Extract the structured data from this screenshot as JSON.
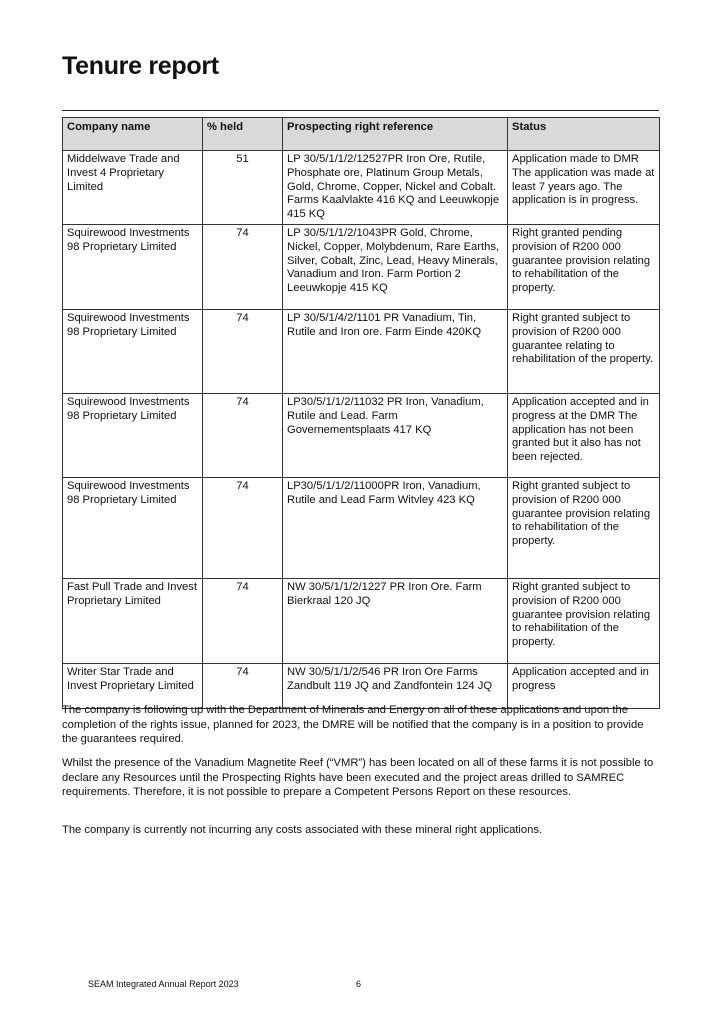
{
  "title": "Tenure report",
  "table": {
    "headers": [
      "Company name",
      "% held",
      "Prospecting right reference",
      "Status"
    ],
    "rows": [
      {
        "company": "Middelwave Trade and Invest 4 Proprietary Limited",
        "held": "51",
        "reference": "LP 30/5/1/1/2/12527PR Iron Ore, Rutile, Phosphate ore, Platinum Group Metals, Gold, Chrome, Copper, Nickel and Cobalt. Farms Kaalvlakte 416 KQ and Leeuwkopje 415 KQ",
        "status": "Application made to DMR The application was made at least 7 years ago. The application is in progress."
      },
      {
        "company": "Squirewood Investments 98 Proprietary Limited",
        "held": "74",
        "reference": "LP 30/5/1/1/2/1043PR Gold, Chrome, Nickel, Copper, Molybdenum, Rare Earths, Silver, Cobalt, Zinc, Lead, Heavy Minerals, Vanadium and Iron. Farm Portion 2 Leeuwkopje 415 KQ",
        "status": "Right granted pending provision of R200 000 guarantee provision relating to rehabilitation of the property."
      },
      {
        "company": "Squirewood Investments 98 Proprietary Limited",
        "held": "74",
        "reference": "LP 30/5/1/4/2/1101 PR Vanadium, Tin, Rutile and Iron ore. Farm Einde 420KQ",
        "status": "Right granted subject to provision of R200 000 guarantee relating to rehabilitation of the property."
      },
      {
        "company": "Squirewood Investments 98 Proprietary Limited",
        "held": "74",
        "reference": "LP30/5/1/1/2/11032 PR Iron, Vanadium, Rutile and Lead. Farm Governementsplaats 417 KQ",
        "status": "Application accepted and in progress at the DMR The application has not been granted but it also has not been rejected."
      },
      {
        "company": "Squirewood Investments 98 Proprietary Limited",
        "held": "74",
        "reference": "LP30/5/1/1/2/11000PR Iron, Vanadium, Rutile and Lead Farm Witvley 423 KQ",
        "status": "Right granted subject to provision of R200 000 guarantee provision relating to rehabilitation of the property."
      },
      {
        "company": "Fast Pull Trade and Invest Proprietary Limited",
        "held": "74",
        "reference": "NW 30/5/1/1/2/1227 PR Iron Ore. Farm Bierkraal 120 JQ",
        "status": "Right granted subject to provision of R200 000 guarantee provision relating to rehabilitation of the property."
      },
      {
        "company": "Writer Star Trade and Invest Proprietary Limited",
        "held": "74",
        "reference": "NW 30/5/1/1/2/546 PR Iron Ore Farms Zandbult 119 JQ and Zandfontein 124 JQ",
        "status": "Application accepted and in progress"
      }
    ]
  },
  "paragraphs": [
    "The company is following up with the Department of Minerals and Energy on all of these applications and upon the completion of the rights issue, planned for 2023, the DMRE will be notified that the company is in a position to provide the guarantees required.",
    "Whilst the presence of the Vanadium Magnetite Reef (“VMR”) has been located on all of these farms it is not possible to declare any Resources until the Prospecting Rights have been executed and the project areas drilled to SAMREC requirements. Therefore, it is not possible to prepare a Competent Persons Report on these resources.",
    "The company is currently not incurring any costs associated with these mineral right applications."
  ],
  "footer": {
    "report": "SEAM Integrated Annual Report 2023",
    "page": "6"
  }
}
